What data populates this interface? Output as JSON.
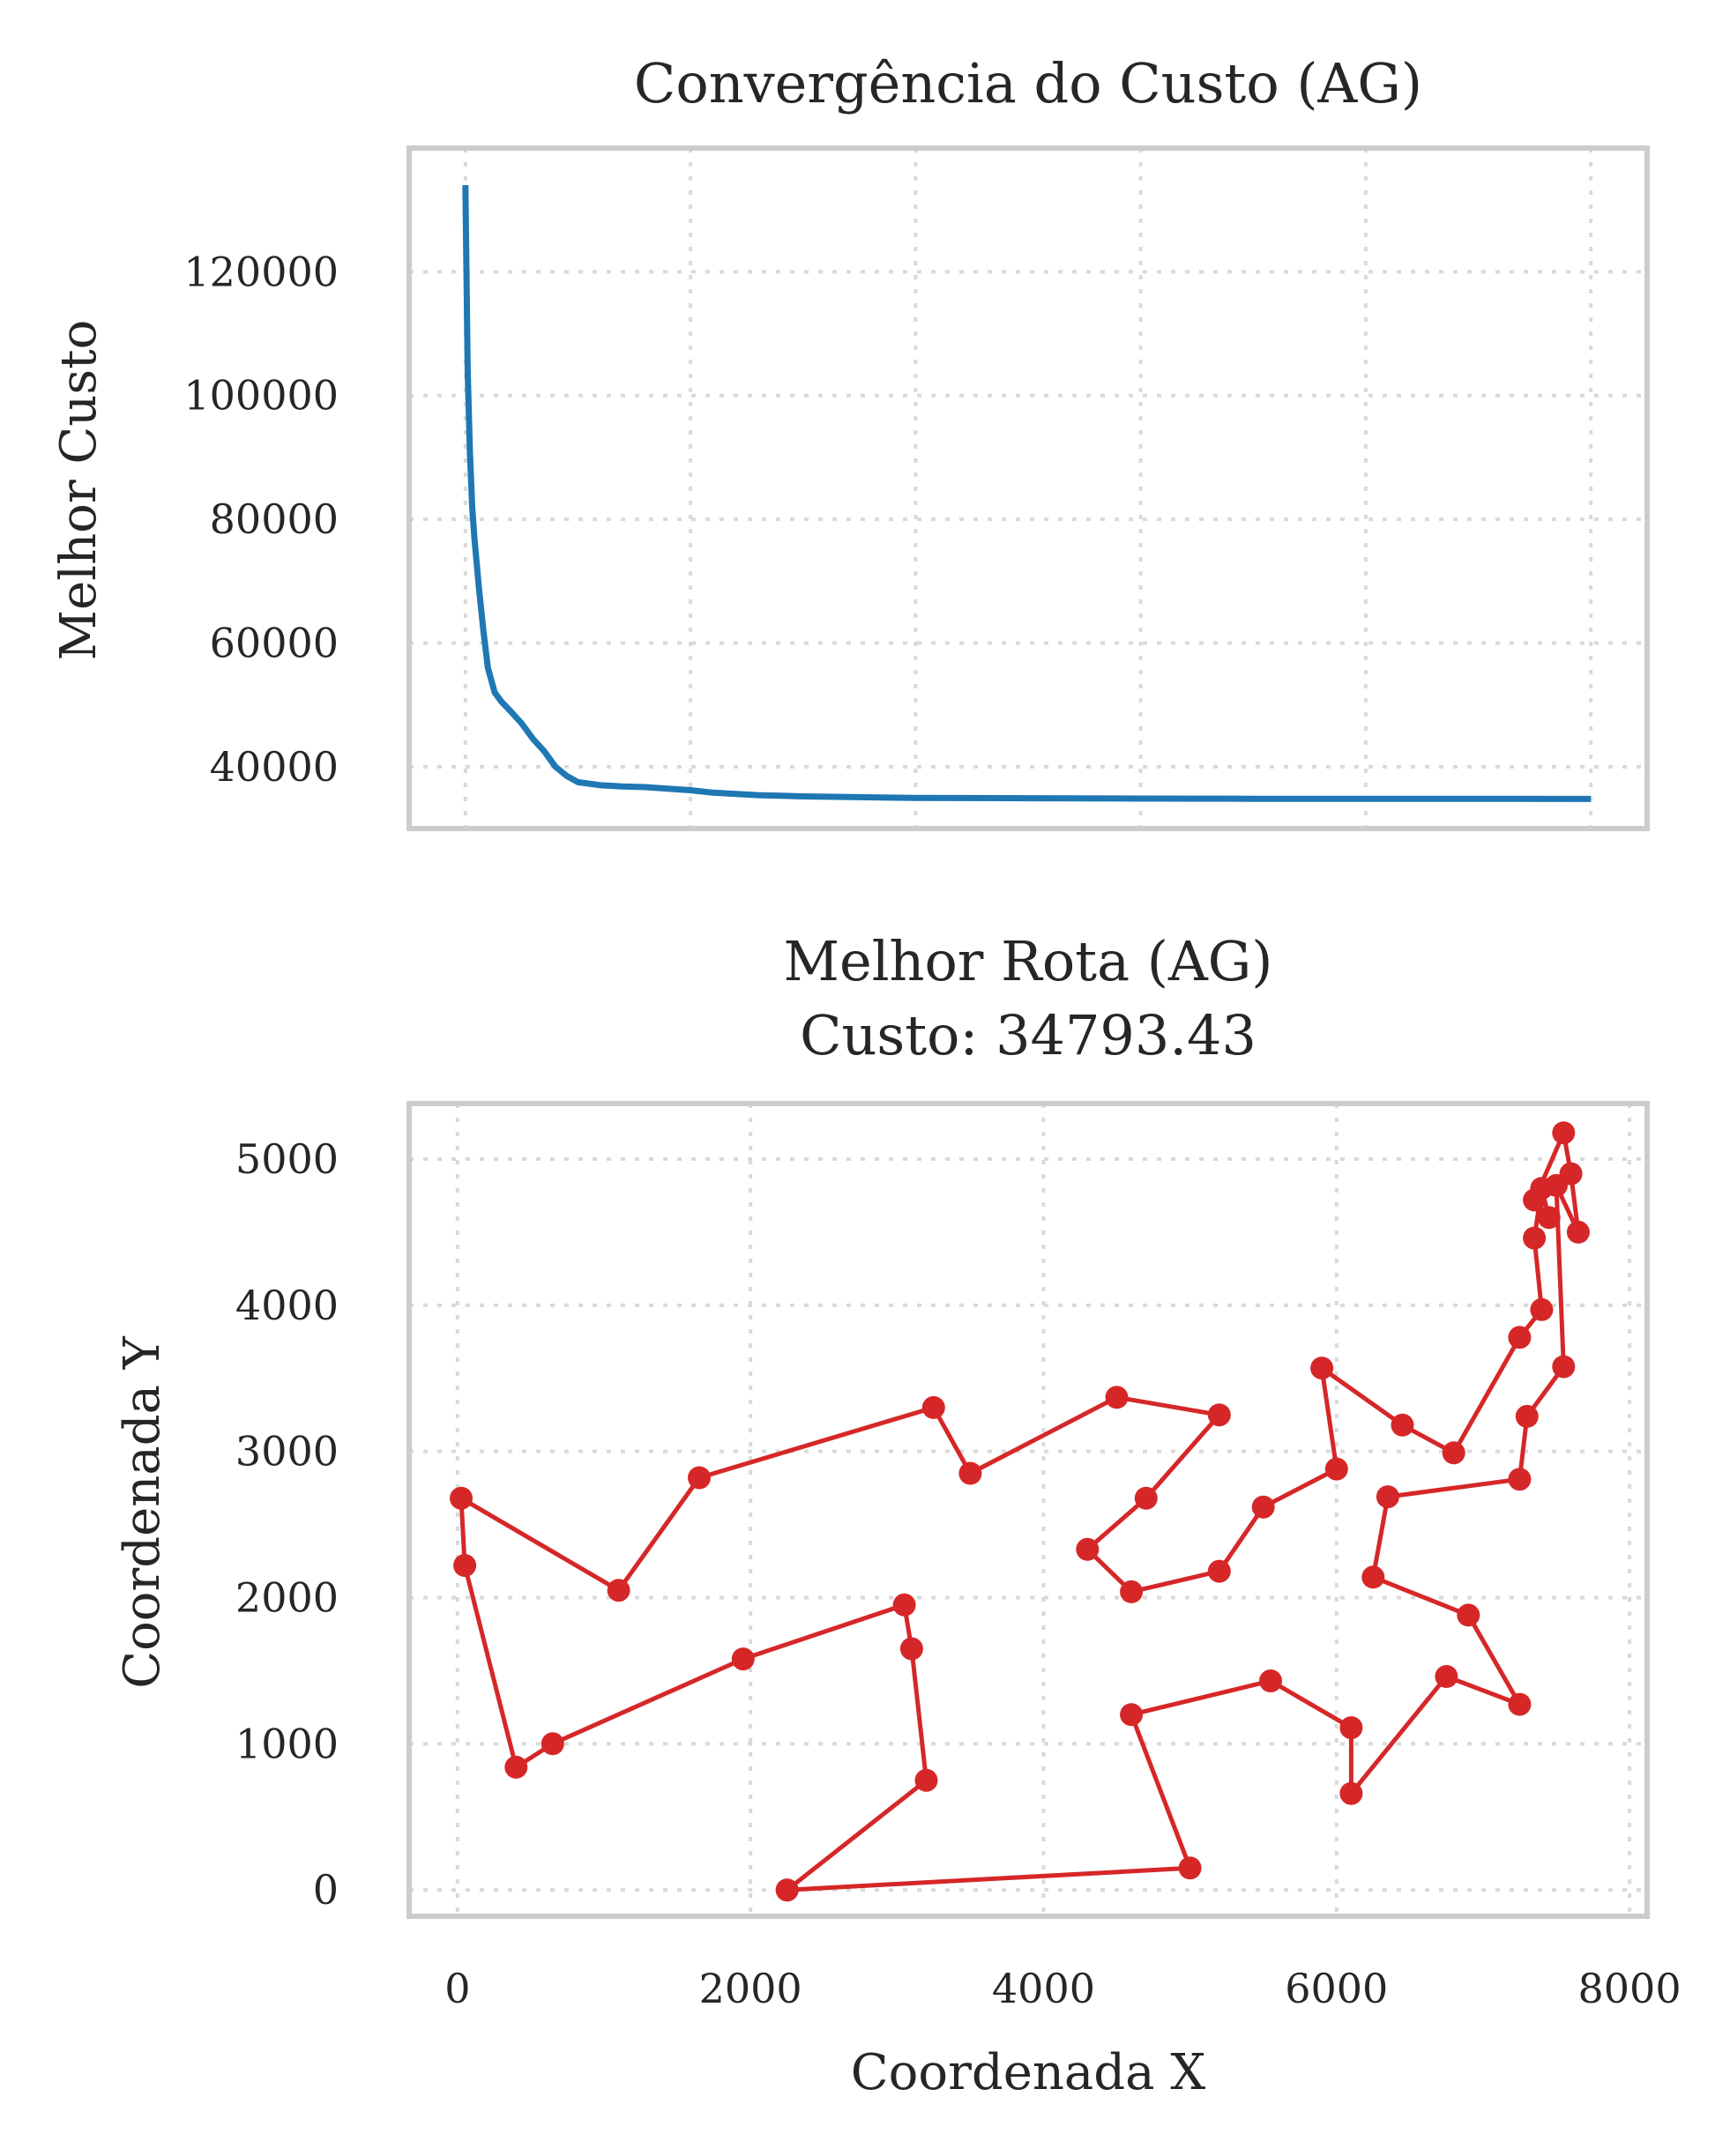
{
  "chart_data": [
    {
      "type": "line",
      "title": "Convergência do Custo (AG)",
      "xlabel": "",
      "ylabel": "Melhor Custo",
      "xlim": [
        -250,
        5250
      ],
      "ylim": [
        30000,
        140000
      ],
      "yticks": [
        40000,
        60000,
        80000,
        100000,
        120000
      ],
      "xticks": [
        0,
        1000,
        2000,
        3000,
        4000,
        5000
      ],
      "grid": true,
      "color": "#1f77b4",
      "series": [
        {
          "x": [
            0,
            10,
            20,
            30,
            40,
            60,
            80,
            100,
            130,
            160,
            200,
            250,
            300,
            350,
            400,
            450,
            500,
            600,
            700,
            800,
            1000,
            1100,
            1300,
            1500,
            2000,
            2500,
            3000,
            3500,
            4000,
            4500,
            5000
          ],
          "y": [
            134000,
            104000,
            91000,
            82000,
            77000,
            69000,
            62000,
            56000,
            52000,
            50500,
            49000,
            47000,
            44500,
            42500,
            40000,
            38500,
            37500,
            37000,
            36800,
            36700,
            36200,
            35800,
            35400,
            35200,
            34950,
            34900,
            34850,
            34820,
            34800,
            34795,
            34793
          ]
        }
      ]
    },
    {
      "type": "line",
      "title": "Melhor Rota (AG)\nCusto: 34793.43",
      "title_lines": [
        "Melhor Rota (AG)",
        "Custo: 34793.43"
      ],
      "xlabel": "Coordenada X",
      "ylabel": "Coordenada Y",
      "xlim": [
        -330,
        8120
      ],
      "ylim": [
        -180,
        5380
      ],
      "xticks": [
        0,
        2000,
        4000,
        6000,
        8000
      ],
      "yticks": [
        0,
        1000,
        2000,
        3000,
        4000,
        5000
      ],
      "grid": true,
      "color": "#d62728",
      "markers": true,
      "series": [
        {
          "x": [
            2250,
            3200,
            3100,
            3050,
            1950,
            650,
            400,
            50,
            25,
            1100,
            1650,
            3250,
            3500,
            4500,
            5200,
            4700,
            4300,
            4600,
            5200,
            5500,
            6000,
            5900,
            6450,
            6800,
            7250,
            7400,
            7350,
            7400,
            7450,
            7350,
            7550,
            7600,
            7650,
            7500,
            7550,
            7300,
            7250,
            6350,
            6250,
            6900,
            7250,
            6750,
            6100,
            6100,
            5550,
            4600,
            5000,
            2250
          ],
          "y": [
            0,
            750,
            1650,
            1950,
            1580,
            1000,
            840,
            2220,
            2680,
            2050,
            2820,
            3300,
            2850,
            3370,
            3250,
            2680,
            2330,
            2040,
            2180,
            2620,
            2880,
            3570,
            3180,
            2990,
            3780,
            3970,
            4460,
            4800,
            4600,
            4720,
            5180,
            4900,
            4500,
            4820,
            3580,
            3240,
            2810,
            2690,
            2140,
            1880,
            1270,
            1460,
            660,
            1110,
            1430,
            1200,
            150,
            0
          ]
        }
      ]
    }
  ]
}
